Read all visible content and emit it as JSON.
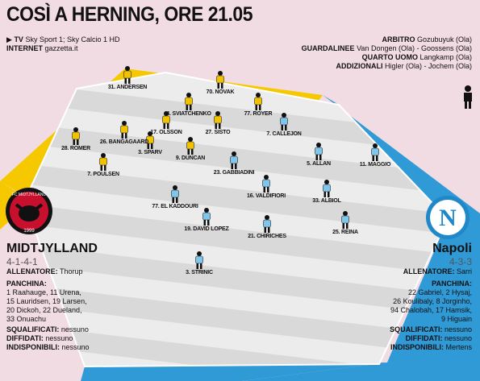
{
  "title": "COSÌ A HERNING, ORE 21.05",
  "tv": {
    "tv_label": "TV",
    "tv_value": "Sky Sport 1; Sky Calcio 1 HD",
    "internet_label": "INTERNET",
    "internet_value": "gazzetta.it"
  },
  "officials": [
    {
      "label": "ARBITRO",
      "value": "Gozubuyuk (Ola)"
    },
    {
      "label": "GUARDALINEE",
      "value": "Van Dongen (Ola) - Goossens (Ola)"
    },
    {
      "label": "QUARTO UOMO",
      "value": "Langkamp (Ola)"
    },
    {
      "label": "ADDIZIONALI",
      "value": "Higler (Ola) - Jochem (Ola)"
    }
  ],
  "home": {
    "name": "MIDTJYLLAND",
    "formation": "4-1-4-1",
    "coach_label": "ALLENATORE:",
    "coach": "Thorup",
    "bench_label": "PANCHINA:",
    "bench": [
      "1 Raahauge, 11 Urena,",
      "15 Lauridsen, 19 Larsen,",
      "20 Dickoh, 22 Dueland,",
      "33 Onuachu"
    ],
    "suspended_label": "SQUALIFICATI:",
    "suspended": "nessuno",
    "warned_label": "DIFFIDATI:",
    "warned": "nessuno",
    "unavailable_label": "INDISPONIBILI:",
    "unavailable": "nessuno",
    "kit_color": "#f2c200",
    "badge_text": "FC MIDTJYLLAND",
    "badge_year": "1999",
    "players": [
      {
        "label": "31. ANDERSEN"
      },
      {
        "label": "70. NOVAK"
      },
      {
        "label": "4. SVIATCHENKO"
      },
      {
        "label": "77. ROYER"
      },
      {
        "label": "26. BANGAGAARD"
      },
      {
        "label": "17. OLSSON"
      },
      {
        "label": "27. SISTO"
      },
      {
        "label": "28. ROMER"
      },
      {
        "label": "3. SPARV"
      },
      {
        "label": "9. DUNCAN"
      },
      {
        "label": "7. POULSEN"
      }
    ]
  },
  "away": {
    "name": "Napoli",
    "formation": "4-3-3",
    "coach_label": "ALLENATORE:",
    "coach": "Sarri",
    "bench_label": "PANCHINA:",
    "bench": [
      "22 Gabriel, 2 Hysaj,",
      "26 Koulibaly, 8 Jorginho,",
      "94 Chalobah, 17 Hamsik,",
      "9 Higuain"
    ],
    "suspended_label": "SQUALIFICATI:",
    "suspended": "nessuno",
    "warned_label": "DIFFIDATI:",
    "warned": "nessuno",
    "unavailable_label": "INDISPONIBILI:",
    "unavailable": "Mertens",
    "kit_color": "#7fc6ea",
    "badge_letter": "N",
    "players": [
      {
        "label": "7. CALLEJON"
      },
      {
        "label": "5. ALLAN"
      },
      {
        "label": "11. MAGGIO"
      },
      {
        "label": "23. GABBIADINI"
      },
      {
        "label": "16. VALDIFIORI"
      },
      {
        "label": "33. ALBIOL"
      },
      {
        "label": "77. EL KADDOURI"
      },
      {
        "label": "19. DAVID LOPEZ"
      },
      {
        "label": "21. CHIRICHES"
      },
      {
        "label": "25. REINA"
      },
      {
        "label": "3. STRINIC"
      }
    ]
  },
  "colors": {
    "background": "#f2dce4",
    "border_yellow": "#f5c800",
    "border_blue": "#2f9ad6",
    "grass_light": "#ececec",
    "grass_dark": "#d9d9d9"
  }
}
